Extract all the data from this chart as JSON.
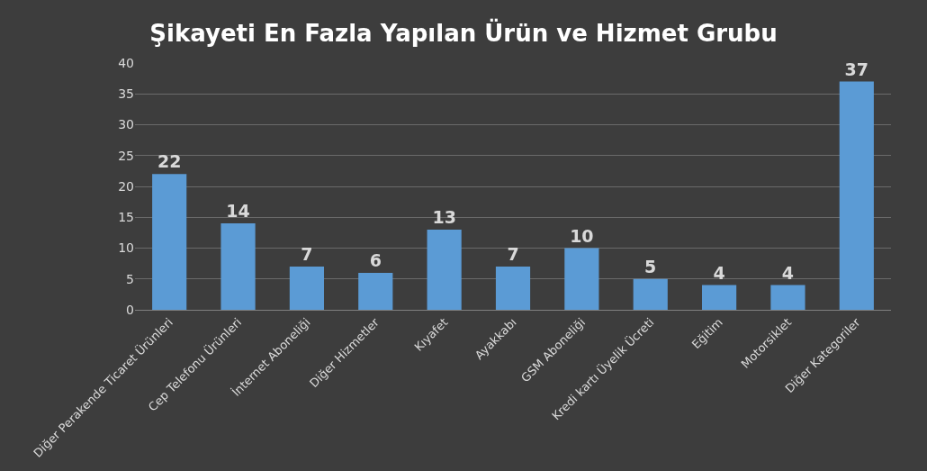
{
  "chart_data": {
    "type": "bar",
    "title": "Şikayeti En Fazla Yapılan Ürün ve Hizmet Grubu",
    "categories": [
      "Diğer Perakende Ticaret Ürünleri",
      "Cep Telefonu Ürünleri",
      "İnternet Aboneliği",
      "Diğer Hizmetler",
      "Kıyafet",
      "Ayakkabı",
      "GSM Aboneliği",
      "Kredi kartı Üyelik Ücreti",
      "Eğitim",
      "Motorsiklet",
      "Diğer Kategoriler"
    ],
    "values": [
      22,
      14,
      7,
      6,
      13,
      7,
      10,
      5,
      4,
      4,
      37
    ],
    "color": "#5b9bd5",
    "ylim": [
      0,
      40
    ],
    "yticks": [
      0,
      5,
      10,
      15,
      20,
      25,
      30,
      35,
      40
    ],
    "grid": "y",
    "data_labels": true,
    "legend": false
  }
}
